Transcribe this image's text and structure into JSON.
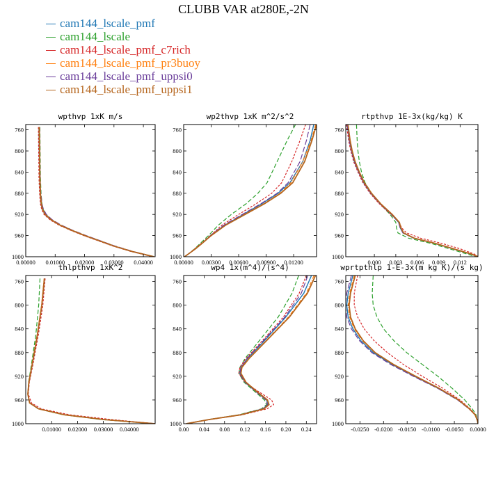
{
  "title": "CLUBB VAR at280E,-2N",
  "legend": [
    {
      "name": "cam144_lscale_pmf",
      "color": "#1f77b4"
    },
    {
      "name": "cam144_lscale",
      "color": "#2ca02c"
    },
    {
      "name": "cam144_lscale_pmf_c7rich",
      "color": "#d62728"
    },
    {
      "name": "cam144_lscale_pmf_pr3buoy",
      "color": "#ff7f0e"
    },
    {
      "name": "cam144_lscale_pmf_uppsi0",
      "color": "#6a3d9a"
    },
    {
      "name": "cam144_lscale_pmf_uppsi1",
      "color": "#b5651d"
    }
  ],
  "chart_data": [
    {
      "type": "line",
      "title": "wpthvp  1xK m/s",
      "xlim": [
        0,
        0.044
      ],
      "ylim": [
        1000,
        750
      ],
      "xticks": [
        0,
        0.01,
        0.02,
        0.03,
        0.04
      ],
      "xtick_labels": [
        "0.00000",
        "0.01000",
        "0.02000",
        "0.03000",
        "0.04000"
      ],
      "yticks": [
        760,
        800,
        840,
        880,
        920,
        960,
        1000
      ],
      "ytick_labels": [
        "760",
        "800",
        "840",
        "880",
        "920",
        "960",
        "1000"
      ],
      "y": [
        755,
        800,
        850,
        880,
        900,
        910,
        920,
        930,
        940,
        950,
        960,
        970,
        980,
        990,
        1000
      ],
      "series": [
        {
          "name": "cam144_lscale_pmf",
          "x": [
            0.0045,
            0.0046,
            0.0047,
            0.0049,
            0.0052,
            0.0056,
            0.0065,
            0.0085,
            0.0115,
            0.0155,
            0.02,
            0.025,
            0.03,
            0.036,
            0.0435
          ]
        },
        {
          "name": "cam144_lscale",
          "x": [
            0.0048,
            0.0049,
            0.005,
            0.0052,
            0.0055,
            0.0059,
            0.0068,
            0.0088,
            0.0118,
            0.0158,
            0.0203,
            0.0253,
            0.0303,
            0.0363,
            0.0438
          ]
        },
        {
          "name": "cam144_lscale_pmf_c7rich",
          "x": [
            0.0043,
            0.0044,
            0.0045,
            0.0047,
            0.005,
            0.0054,
            0.0062,
            0.0082,
            0.0112,
            0.0152,
            0.0197,
            0.0247,
            0.0297,
            0.0357,
            0.0432
          ]
        },
        {
          "name": "cam144_lscale_pmf_pr3buoy",
          "x": [
            0.0046,
            0.0047,
            0.0048,
            0.005,
            0.0053,
            0.0057,
            0.0066,
            0.0086,
            0.0116,
            0.0156,
            0.0201,
            0.0251,
            0.0301,
            0.0361,
            0.0436
          ]
        },
        {
          "name": "cam144_lscale_pmf_uppsi0",
          "x": [
            0.0047,
            0.0048,
            0.0049,
            0.0051,
            0.0055,
            0.006,
            0.007,
            0.009,
            0.012,
            0.016,
            0.0205,
            0.0255,
            0.0305,
            0.0365,
            0.0437
          ]
        },
        {
          "name": "cam144_lscale_pmf_uppsi1",
          "x": [
            0.0046,
            0.0047,
            0.0048,
            0.005,
            0.0053,
            0.0057,
            0.0066,
            0.0086,
            0.0116,
            0.0156,
            0.0201,
            0.0251,
            0.0301,
            0.0361,
            0.0436
          ]
        }
      ]
    },
    {
      "type": "line",
      "title": "wp2thvp  1xK m^2/s^2",
      "xlim": [
        0,
        0.0145
      ],
      "ylim": [
        1000,
        750
      ],
      "xticks": [
        0,
        0.003,
        0.006,
        0.009,
        0.012
      ],
      "xtick_labels": [
        "0.00000",
        "0.00300",
        "0.00600",
        "0.00900",
        "0.01200"
      ],
      "yticks": [
        760,
        800,
        840,
        880,
        920,
        960,
        1000
      ],
      "ytick_labels": [
        "760",
        "800",
        "840",
        "880",
        "920",
        "960",
        "1000"
      ],
      "y": [
        750,
        780,
        820,
        860,
        880,
        900,
        920,
        940,
        960,
        975,
        985,
        995,
        1000
      ],
      "series": [
        {
          "name": "cam144_lscale_pmf",
          "x": [
            0.0142,
            0.0138,
            0.013,
            0.0116,
            0.0103,
            0.0085,
            0.0065,
            0.0045,
            0.003,
            0.002,
            0.0013,
            0.0005,
            0.0001
          ]
        },
        {
          "name": "cam144_lscale",
          "x": [
            0.0122,
            0.0113,
            0.0102,
            0.0091,
            0.0081,
            0.0068,
            0.0052,
            0.0038,
            0.0027,
            0.0018,
            0.0012,
            0.0005,
            0.0001
          ]
        },
        {
          "name": "cam144_lscale_pmf_c7rich",
          "x": [
            0.0133,
            0.0127,
            0.0118,
            0.0107,
            0.0096,
            0.0079,
            0.006,
            0.0042,
            0.0029,
            0.0019,
            0.0012,
            0.0005,
            0.0001
          ]
        },
        {
          "name": "cam144_lscale_pmf_pr3buoy",
          "x": [
            0.0144,
            0.0139,
            0.013,
            0.0117,
            0.0105,
            0.0087,
            0.0066,
            0.0046,
            0.003,
            0.002,
            0.0013,
            0.0005,
            0.0001
          ]
        },
        {
          "name": "cam144_lscale_pmf_uppsi0",
          "x": [
            0.0138,
            0.0134,
            0.0127,
            0.0114,
            0.0102,
            0.0084,
            0.0064,
            0.0044,
            0.0029,
            0.002,
            0.0013,
            0.0005,
            0.0001
          ]
        },
        {
          "name": "cam144_lscale_pmf_uppsi1",
          "x": [
            0.0145,
            0.014,
            0.0132,
            0.0119,
            0.0106,
            0.0088,
            0.0067,
            0.0046,
            0.003,
            0.002,
            0.0013,
            0.0005,
            0.0001
          ]
        }
      ]
    },
    {
      "type": "line",
      "title": "rtpthvp  1E-3x(kg/kg) K",
      "xlim": [
        -0.004,
        0.0145
      ],
      "ylim": [
        1000,
        750
      ],
      "xticks": [
        0,
        0.003,
        0.006,
        0.009,
        0.012
      ],
      "xtick_labels": [
        "0.000",
        "0.003",
        "0.006",
        "0.009",
        "0.012"
      ],
      "yticks": [
        760,
        800,
        840,
        880,
        920,
        960,
        1000
      ],
      "ytick_labels": [
        "760",
        "800",
        "840",
        "880",
        "920",
        "960",
        "1000"
      ],
      "y": [
        750,
        780,
        800,
        820,
        840,
        860,
        880,
        900,
        920,
        935,
        945,
        955,
        965,
        975,
        985,
        995,
        1000
      ],
      "series": [
        {
          "name": "cam144_lscale_pmf",
          "x": [
            -0.0038,
            -0.0035,
            -0.0032,
            -0.0028,
            -0.0022,
            -0.0015,
            -0.0005,
            0.0008,
            0.0024,
            0.0034,
            0.0036,
            0.004,
            0.0055,
            0.0085,
            0.011,
            0.0135,
            0.0145
          ]
        },
        {
          "name": "cam144_lscale",
          "x": [
            -0.0025,
            -0.0024,
            -0.0023,
            -0.0021,
            -0.0018,
            -0.0013,
            -0.0004,
            0.0008,
            0.0022,
            0.003,
            0.0031,
            0.0033,
            0.0048,
            0.008,
            0.0105,
            0.013,
            0.0142
          ]
        },
        {
          "name": "cam144_lscale_pmf_c7rich",
          "x": [
            -0.0039,
            -0.0036,
            -0.0033,
            -0.0029,
            -0.0023,
            -0.0016,
            -0.0006,
            0.0007,
            0.0023,
            0.0035,
            0.0038,
            0.0045,
            0.0065,
            0.0095,
            0.012,
            0.014,
            0.0145
          ]
        },
        {
          "name": "cam144_lscale_pmf_pr3buoy",
          "x": [
            -0.0037,
            -0.0034,
            -0.0031,
            -0.0027,
            -0.0021,
            -0.0014,
            -0.0004,
            0.0009,
            0.0025,
            0.0035,
            0.0037,
            0.0041,
            0.0056,
            0.0086,
            0.0111,
            0.0136,
            0.0145
          ]
        },
        {
          "name": "cam144_lscale_pmf_uppsi0",
          "x": [
            -0.0038,
            -0.0035,
            -0.0032,
            -0.0028,
            -0.0022,
            -0.0015,
            -0.0005,
            0.0008,
            0.0024,
            0.0034,
            0.0036,
            0.004,
            0.0055,
            0.0085,
            0.011,
            0.0135,
            0.0145
          ]
        },
        {
          "name": "cam144_lscale_pmf_uppsi1",
          "x": [
            -0.0037,
            -0.0034,
            -0.0031,
            -0.0027,
            -0.0021,
            -0.0014,
            -0.0004,
            0.0009,
            0.0025,
            0.0035,
            0.0037,
            0.0041,
            0.0056,
            0.0086,
            0.0111,
            0.0136,
            0.0145
          ]
        }
      ]
    },
    {
      "type": "line",
      "title": "thlpthvp  1xK^2",
      "xlim": [
        0,
        0.05
      ],
      "ylim": [
        1000,
        750
      ],
      "xticks": [
        0.01,
        0.02,
        0.03,
        0.04
      ],
      "xtick_labels": [
        "0.01000",
        "0.02000",
        "0.03000",
        "0.04000"
      ],
      "yticks": [
        760,
        800,
        840,
        880,
        920,
        960,
        1000
      ],
      "ytick_labels": [
        "760",
        "800",
        "840",
        "880",
        "920",
        "960",
        "1000"
      ],
      "y": [
        755,
        800,
        850,
        900,
        930,
        950,
        965,
        975,
        985,
        993,
        1000
      ],
      "series": [
        {
          "name": "cam144_lscale_pmf",
          "x": [
            0.0072,
            0.0062,
            0.0045,
            0.0025,
            0.0012,
            0.0008,
            0.0015,
            0.005,
            0.015,
            0.03,
            0.05
          ]
        },
        {
          "name": "cam144_lscale",
          "x": [
            0.0055,
            0.005,
            0.0039,
            0.0022,
            0.0011,
            0.0008,
            0.0015,
            0.0048,
            0.0145,
            0.029,
            0.049
          ]
        },
        {
          "name": "cam144_lscale_pmf_c7rich",
          "x": [
            0.0075,
            0.0066,
            0.0049,
            0.0028,
            0.0014,
            0.001,
            0.0022,
            0.006,
            0.017,
            0.033,
            0.05
          ]
        },
        {
          "name": "cam144_lscale_pmf_pr3buoy",
          "x": [
            0.0071,
            0.0061,
            0.0044,
            0.0024,
            0.0012,
            0.0008,
            0.0015,
            0.005,
            0.015,
            0.03,
            0.05
          ]
        },
        {
          "name": "cam144_lscale_pmf_uppsi0",
          "x": [
            0.0073,
            0.0063,
            0.0046,
            0.0026,
            0.0013,
            0.0009,
            0.0016,
            0.0051,
            0.0151,
            0.0301,
            0.05
          ]
        },
        {
          "name": "cam144_lscale_pmf_uppsi1",
          "x": [
            0.0072,
            0.0062,
            0.0045,
            0.0025,
            0.0012,
            0.0008,
            0.0015,
            0.005,
            0.015,
            0.03,
            0.05
          ]
        }
      ]
    },
    {
      "type": "line",
      "title": "wp4  1x(m^4)/(s^4)",
      "xlim": [
        0,
        0.26
      ],
      "ylim": [
        1000,
        750
      ],
      "xticks": [
        0,
        0.04,
        0.08,
        0.12,
        0.16,
        0.2,
        0.24
      ],
      "xtick_labels": [
        "0.00",
        "0.04",
        "0.08",
        "0.12",
        "0.16",
        "0.20",
        "0.24"
      ],
      "yticks": [
        760,
        800,
        840,
        880,
        920,
        960,
        1000
      ],
      "ytick_labels": [
        "760",
        "800",
        "840",
        "880",
        "920",
        "960",
        "1000"
      ],
      "y": [
        750,
        780,
        820,
        860,
        890,
        905,
        915,
        930,
        945,
        960,
        968,
        975,
        985,
        993,
        1000
      ],
      "series": [
        {
          "name": "cam144_lscale_pmf",
          "x": [
            0.25,
            0.235,
            0.2,
            0.158,
            0.125,
            0.112,
            0.11,
            0.12,
            0.14,
            0.162,
            0.165,
            0.155,
            0.11,
            0.05,
            0.005
          ]
        },
        {
          "name": "cam144_lscale",
          "x": [
            0.225,
            0.212,
            0.185,
            0.148,
            0.12,
            0.11,
            0.108,
            0.118,
            0.138,
            0.158,
            0.162,
            0.152,
            0.108,
            0.049,
            0.005
          ]
        },
        {
          "name": "cam144_lscale_pmf_c7rich",
          "x": [
            0.24,
            0.226,
            0.195,
            0.154,
            0.122,
            0.11,
            0.108,
            0.12,
            0.145,
            0.172,
            0.176,
            0.163,
            0.115,
            0.052,
            0.005
          ]
        },
        {
          "name": "cam144_lscale_pmf_pr3buoy",
          "x": [
            0.255,
            0.24,
            0.205,
            0.161,
            0.127,
            0.113,
            0.111,
            0.121,
            0.141,
            0.163,
            0.166,
            0.156,
            0.111,
            0.05,
            0.005
          ]
        },
        {
          "name": "cam144_lscale_pmf_uppsi0",
          "x": [
            0.243,
            0.23,
            0.198,
            0.156,
            0.124,
            0.112,
            0.11,
            0.12,
            0.14,
            0.161,
            0.164,
            0.154,
            0.11,
            0.05,
            0.005
          ]
        },
        {
          "name": "cam144_lscale_pmf_uppsi1",
          "x": [
            0.258,
            0.242,
            0.207,
            0.162,
            0.128,
            0.114,
            0.112,
            0.122,
            0.142,
            0.164,
            0.167,
            0.157,
            0.112,
            0.05,
            0.005
          ]
        }
      ]
    },
    {
      "type": "line",
      "title": "wprtpthlp  1-E-3x(m kg K)/(s kg)",
      "xlim": [
        -0.028,
        0.0
      ],
      "ylim": [
        1000,
        750
      ],
      "xticks": [
        -0.025,
        -0.02,
        -0.015,
        -0.01,
        -0.005,
        0.0
      ],
      "xtick_labels": [
        "-0.0250",
        "-0.0200",
        "-0.0150",
        "-0.0100",
        "-0.0050",
        "0.0000"
      ],
      "yticks": [
        760,
        800,
        840,
        880,
        920,
        960,
        1000
      ],
      "ytick_labels": [
        "760",
        "800",
        "840",
        "880",
        "920",
        "960",
        "1000"
      ],
      "y": [
        750,
        780,
        800,
        820,
        840,
        860,
        880,
        900,
        920,
        940,
        960,
        975,
        985,
        995,
        1000
      ],
      "series": [
        {
          "name": "cam144_lscale_pmf",
          "x": [
            -0.0265,
            -0.0275,
            -0.0278,
            -0.0275,
            -0.0265,
            -0.0248,
            -0.0222,
            -0.0182,
            -0.0135,
            -0.0085,
            -0.0042,
            -0.0018,
            -0.0006,
            -0.0001,
            0.0
          ]
        },
        {
          "name": "cam144_lscale",
          "x": [
            -0.0222,
            -0.0224,
            -0.0222,
            -0.0214,
            -0.02,
            -0.0178,
            -0.0151,
            -0.0118,
            -0.0085,
            -0.0055,
            -0.0028,
            -0.0012,
            -0.0004,
            -0.0001,
            0.0
          ]
        },
        {
          "name": "cam144_lscale_pmf_c7rich",
          "x": [
            -0.0255,
            -0.0262,
            -0.0262,
            -0.0255,
            -0.0241,
            -0.022,
            -0.0192,
            -0.0158,
            -0.0118,
            -0.0075,
            -0.0038,
            -0.0016,
            -0.0005,
            -0.0001,
            0.0
          ]
        },
        {
          "name": "cam144_lscale_pmf_pr3buoy",
          "x": [
            -0.0262,
            -0.0272,
            -0.0275,
            -0.0272,
            -0.0262,
            -0.0245,
            -0.0219,
            -0.018,
            -0.0133,
            -0.0084,
            -0.0041,
            -0.0018,
            -0.0006,
            -0.0001,
            0.0
          ]
        },
        {
          "name": "cam144_lscale_pmf_uppsi0",
          "x": [
            -0.0268,
            -0.0278,
            -0.0281,
            -0.0278,
            -0.0268,
            -0.0251,
            -0.0225,
            -0.0185,
            -0.0137,
            -0.0086,
            -0.0043,
            -0.0019,
            -0.0006,
            -0.0001,
            0.0
          ]
        },
        {
          "name": "cam144_lscale_pmf_uppsi1",
          "x": [
            -0.026,
            -0.027,
            -0.0273,
            -0.027,
            -0.026,
            -0.0243,
            -0.0218,
            -0.0179,
            -0.0132,
            -0.0083,
            -0.0041,
            -0.0018,
            -0.0006,
            -0.0001,
            0.0
          ]
        }
      ]
    }
  ]
}
